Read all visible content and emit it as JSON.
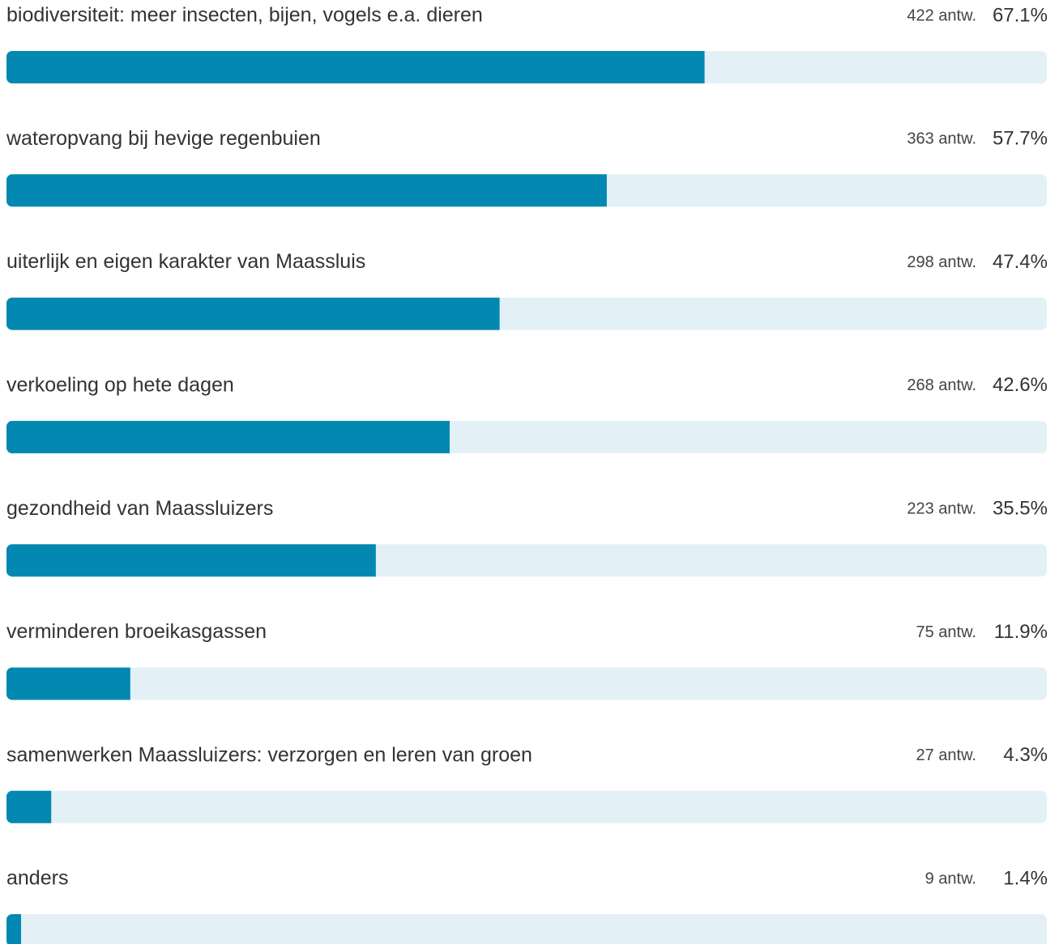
{
  "chart_data": {
    "type": "bar",
    "categories": [
      "biodiversiteit: meer insecten, bijen, vogels e.a. dieren",
      "wateropvang bij hevige regenbuien",
      "uiterlijk en eigen karakter van Maassluis",
      "verkoeling op hete dagen",
      "gezondheid van Maassluizers",
      "verminderen broeikasgassen",
      "samenwerken Maassluizers: verzorgen en leren van groen",
      "anders"
    ],
    "values": [
      67.1,
      57.7,
      47.4,
      42.6,
      35.5,
      11.9,
      4.3,
      1.4
    ],
    "value_labels": [
      "67.1%",
      "57.7%",
      "47.4%",
      "42.6%",
      "35.5%",
      "11.9%",
      "4.3%",
      "1.4%"
    ],
    "count_labels": [
      "422 antw.",
      "363 antw.",
      "298 antw.",
      "268 antw.",
      "223 antw.",
      "75 antw.",
      "27 antw.",
      "9 antw."
    ],
    "xlim": [
      0,
      100
    ],
    "color": "#0288b1",
    "track_color": "#e3f1f7"
  }
}
